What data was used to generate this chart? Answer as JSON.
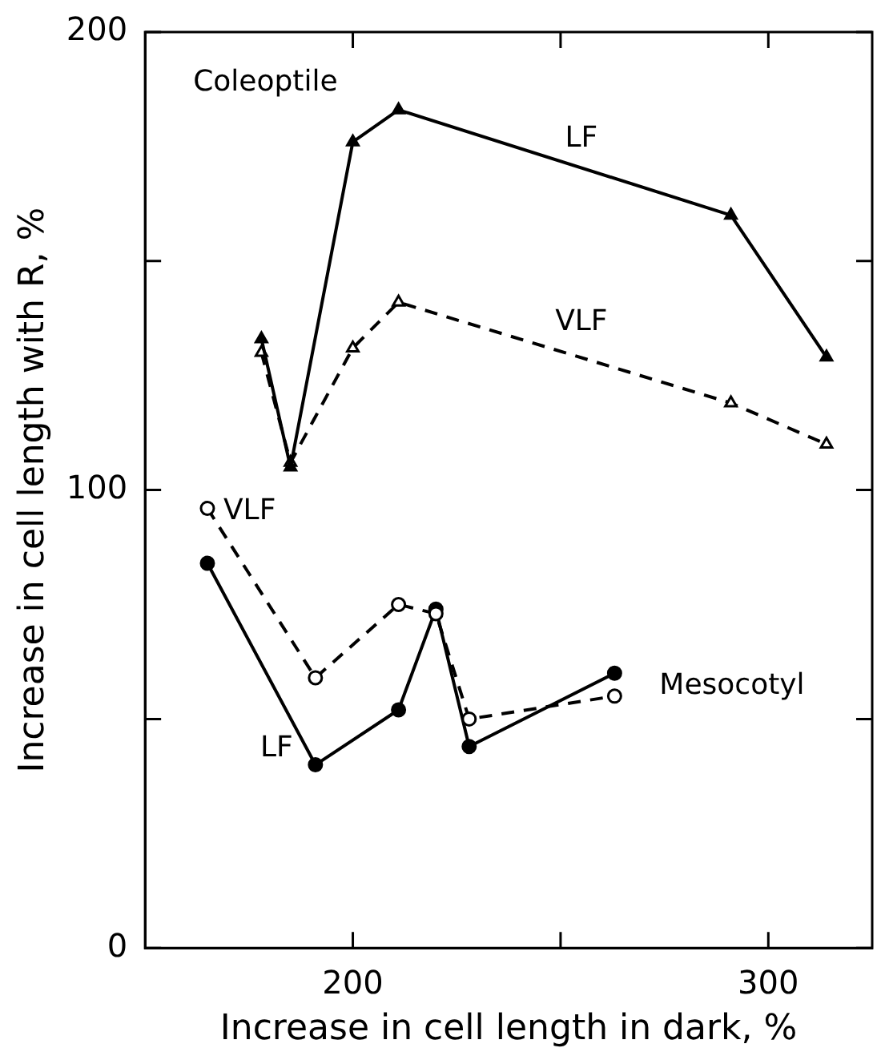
{
  "chart_data": {
    "type": "line",
    "xlabel": "Increase in cell length in dark, %",
    "ylabel": "Increase in cell length with R, %",
    "xlim": [
      150,
      325
    ],
    "xticks": [
      200,
      {
        "value": 250,
        "label": null
      },
      300
    ],
    "ylim": [
      0,
      200
    ],
    "yticks": [
      0,
      {
        "value": 50,
        "label": null
      },
      100,
      {
        "value": 150,
        "label": null
      },
      200
    ],
    "grid": false,
    "legend": false,
    "annotations": [
      "Coleoptile",
      "Mesocotyl"
    ],
    "series": [
      {
        "name": "LF",
        "color": "#000000",
        "marker": "triangle",
        "line_style": "solid",
        "x": [
          178,
          185,
          200,
          211,
          291,
          314
        ],
        "values": [
          133,
          105,
          176,
          183,
          160,
          129
        ]
      },
      {
        "name": "VLF",
        "color": "#000000",
        "marker": "triangle",
        "line_style": "dashed",
        "x": [
          178,
          185,
          200,
          211,
          291,
          314
        ],
        "values": [
          130,
          106,
          131,
          141,
          119,
          110
        ]
      },
      {
        "name": "VLF",
        "color": "#000000",
        "marker": "circle",
        "line_style": "dashed",
        "x": [
          165,
          191,
          211,
          220,
          228,
          263
        ],
        "values": [
          96,
          59,
          75,
          73,
          50,
          55
        ]
      },
      {
        "name": "LF",
        "color": "#000000",
        "marker": "circle",
        "line_style": "solid",
        "x": [
          165,
          191,
          211,
          220,
          228,
          263
        ],
        "values": [
          84,
          40,
          52,
          74,
          44,
          60
        ]
      }
    ]
  }
}
